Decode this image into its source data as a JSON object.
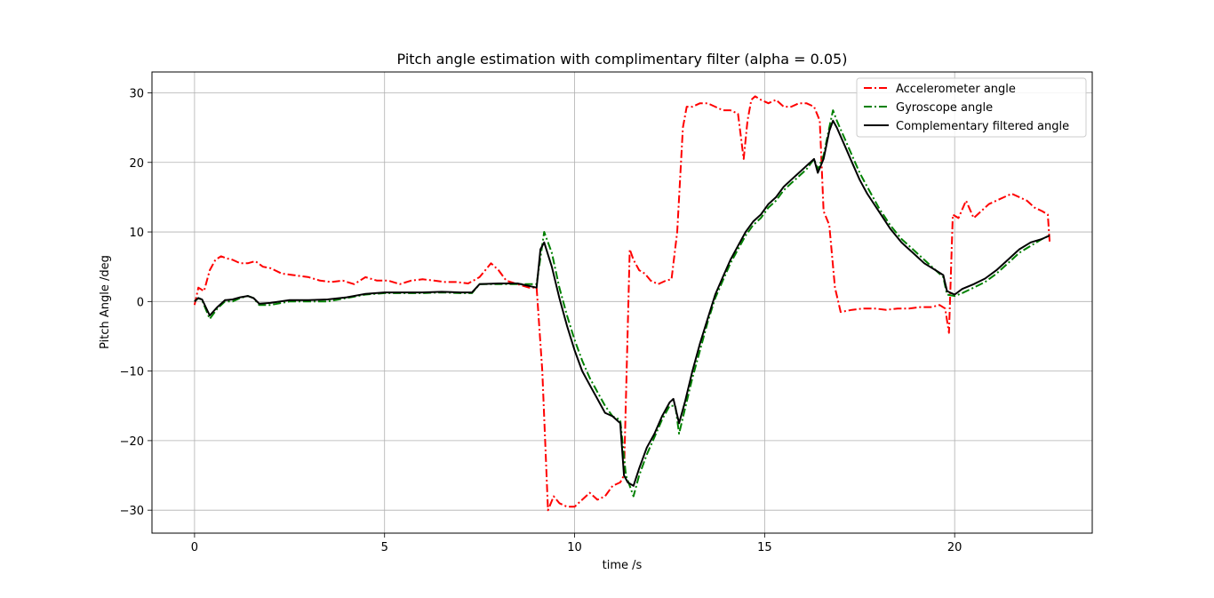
{
  "chart_data": {
    "type": "line",
    "title": "Pitch angle estimation with complimentary filter (alpha = 0.05)",
    "xlabel": "time /s",
    "ylabel": "Pitch Angle /deg",
    "xlim": [
      -1.12,
      23.62
    ],
    "ylim": [
      -33.3,
      33.0
    ],
    "xticks": [
      0,
      5,
      10,
      15,
      20
    ],
    "yticks": [
      -30,
      -20,
      -10,
      0,
      10,
      20,
      30
    ],
    "xtick_labels": [
      "0",
      "5",
      "10",
      "15",
      "20"
    ],
    "ytick_labels": [
      "−30",
      "−20",
      "−10",
      "0",
      "10",
      "20",
      "30"
    ],
    "grid": true,
    "legend_position": "top-right",
    "series": [
      {
        "name": "Accelerometer angle",
        "color": "#ff0000",
        "style": "dashdot",
        "x": [
          0.0,
          0.1,
          0.25,
          0.4,
          0.55,
          0.7,
          0.85,
          1.0,
          1.2,
          1.4,
          1.6,
          1.8,
          2.0,
          2.3,
          2.6,
          3.0,
          3.3,
          3.6,
          3.9,
          4.2,
          4.5,
          4.8,
          5.1,
          5.4,
          5.7,
          6.0,
          6.3,
          6.6,
          6.9,
          7.2,
          7.5,
          7.8,
          8.0,
          8.2,
          8.5,
          8.8,
          9.0,
          9.15,
          9.3,
          9.45,
          9.6,
          9.8,
          10.0,
          10.2,
          10.4,
          10.6,
          10.8,
          11.0,
          11.2,
          11.3,
          11.45,
          11.55,
          11.7,
          11.85,
          12.0,
          12.2,
          12.4,
          12.55,
          12.7,
          12.85,
          12.95,
          13.1,
          13.3,
          13.5,
          13.7,
          13.9,
          14.1,
          14.3,
          14.45,
          14.55,
          14.65,
          14.75,
          14.9,
          15.1,
          15.3,
          15.5,
          15.7,
          15.9,
          16.1,
          16.3,
          16.45,
          16.55,
          16.7,
          16.85,
          17.0,
          17.3,
          17.6,
          17.9,
          18.2,
          18.5,
          18.8,
          19.1,
          19.4,
          19.6,
          19.75,
          19.85,
          19.95,
          20.1,
          20.3,
          20.5,
          20.7,
          20.9,
          21.1,
          21.3,
          21.5,
          21.7,
          21.9,
          22.1,
          22.3,
          22.45,
          22.5
        ],
        "y": [
          -0.5,
          2.0,
          1.5,
          4.5,
          6.0,
          6.5,
          6.2,
          6.0,
          5.5,
          5.5,
          5.8,
          5.0,
          4.8,
          4.0,
          3.8,
          3.5,
          3.0,
          2.8,
          3.0,
          2.5,
          3.5,
          3.0,
          3.0,
          2.5,
          3.0,
          3.2,
          3.0,
          2.8,
          2.8,
          2.6,
          3.5,
          5.5,
          4.5,
          3.0,
          2.5,
          2.0,
          2.0,
          -10.0,
          -30.0,
          -28.0,
          -29.0,
          -29.5,
          -29.5,
          -28.5,
          -27.5,
          -28.5,
          -28.0,
          -26.5,
          -26.0,
          -25.0,
          7.5,
          6.0,
          4.5,
          4.0,
          3.0,
          2.5,
          3.0,
          3.2,
          10.0,
          25.0,
          28.0,
          28.0,
          28.5,
          28.5,
          28.0,
          27.5,
          27.5,
          27.0,
          20.5,
          26.0,
          29.0,
          29.5,
          29.0,
          28.5,
          29.0,
          28.0,
          28.0,
          28.5,
          28.5,
          28.0,
          26.0,
          13.0,
          11.0,
          2.0,
          -1.5,
          -1.2,
          -1.0,
          -1.0,
          -1.2,
          -1.0,
          -1.0,
          -0.8,
          -0.8,
          -0.5,
          -1.0,
          -4.5,
          12.5,
          12.0,
          14.5,
          12.0,
          13.0,
          14.0,
          14.5,
          15.0,
          15.5,
          15.0,
          14.5,
          13.5,
          13.0,
          12.5,
          8.5
        ]
      },
      {
        "name": "Gyroscope angle",
        "color": "#008000",
        "style": "dashdot",
        "x": [
          0.0,
          0.1,
          0.2,
          0.4,
          0.6,
          0.8,
          1.0,
          1.2,
          1.4,
          1.55,
          1.7,
          2.0,
          2.5,
          3.0,
          3.5,
          4.0,
          4.5,
          5.0,
          5.5,
          6.0,
          6.5,
          7.0,
          7.3,
          7.5,
          8.0,
          8.5,
          9.0,
          9.2,
          9.4,
          9.6,
          9.8,
          10.0,
          10.2,
          10.4,
          10.6,
          10.8,
          11.0,
          11.2,
          11.35,
          11.45,
          11.55,
          11.7,
          11.9,
          12.1,
          12.3,
          12.5,
          12.65,
          12.75,
          12.9,
          13.1,
          13.3,
          13.5,
          13.7,
          13.9,
          14.1,
          14.3,
          14.5,
          14.7,
          14.9,
          15.1,
          15.3,
          15.5,
          15.7,
          15.9,
          16.1,
          16.3,
          16.4,
          16.55,
          16.7,
          16.8,
          16.9,
          17.1,
          17.3,
          17.5,
          17.7,
          18.0,
          18.3,
          18.6,
          18.9,
          19.2,
          19.5,
          19.7,
          19.8,
          20.0,
          20.2,
          20.5,
          20.8,
          21.1,
          21.4,
          21.7,
          22.0,
          22.3,
          22.5
        ],
        "y": [
          0.0,
          0.5,
          0.2,
          -2.5,
          -1.0,
          0.0,
          0.0,
          0.5,
          0.8,
          0.5,
          -0.5,
          -0.5,
          0.0,
          0.0,
          0.0,
          0.5,
          1.0,
          1.2,
          1.2,
          1.2,
          1.3,
          1.2,
          1.2,
          2.5,
          2.5,
          2.5,
          2.5,
          10.0,
          7.0,
          2.0,
          -2.0,
          -5.5,
          -8.5,
          -11.0,
          -13.0,
          -15.0,
          -16.5,
          -17.0,
          -25.0,
          -26.5,
          -28.0,
          -25.0,
          -22.0,
          -19.5,
          -17.0,
          -15.0,
          -15.0,
          -19.0,
          -15.5,
          -11.0,
          -7.0,
          -3.0,
          0.5,
          3.0,
          5.5,
          7.5,
          9.5,
          11.0,
          12.0,
          13.5,
          14.5,
          16.0,
          17.0,
          18.0,
          19.0,
          20.5,
          19.0,
          21.0,
          25.0,
          27.5,
          26.0,
          23.5,
          21.0,
          18.5,
          16.5,
          13.5,
          11.0,
          9.0,
          7.5,
          6.0,
          4.5,
          3.5,
          1.0,
          0.8,
          1.2,
          2.0,
          2.8,
          4.0,
          5.5,
          7.0,
          8.0,
          9.0,
          9.5
        ]
      },
      {
        "name": "Complementary filtered angle",
        "color": "#000000",
        "style": "solid",
        "x": [
          0.0,
          0.1,
          0.2,
          0.4,
          0.6,
          0.8,
          1.0,
          1.2,
          1.4,
          1.55,
          1.7,
          2.0,
          2.5,
          3.0,
          3.5,
          4.0,
          4.5,
          5.0,
          5.5,
          6.0,
          6.5,
          7.0,
          7.3,
          7.5,
          8.0,
          8.5,
          9.0,
          9.1,
          9.2,
          9.4,
          9.6,
          9.8,
          10.0,
          10.2,
          10.4,
          10.6,
          10.8,
          11.0,
          11.2,
          11.3,
          11.4,
          11.55,
          11.7,
          11.9,
          12.1,
          12.3,
          12.5,
          12.6,
          12.75,
          12.9,
          13.1,
          13.3,
          13.5,
          13.7,
          13.9,
          14.1,
          14.3,
          14.5,
          14.7,
          14.9,
          15.1,
          15.3,
          15.5,
          15.7,
          15.9,
          16.1,
          16.3,
          16.4,
          16.55,
          16.7,
          16.8,
          16.9,
          17.1,
          17.3,
          17.5,
          17.7,
          18.0,
          18.3,
          18.6,
          18.9,
          19.2,
          19.5,
          19.7,
          19.8,
          20.0,
          20.2,
          20.5,
          20.8,
          21.1,
          21.4,
          21.7,
          22.0,
          22.3,
          22.5
        ],
        "y": [
          0.0,
          0.5,
          0.3,
          -2.0,
          -0.8,
          0.2,
          0.3,
          0.6,
          0.8,
          0.5,
          -0.3,
          -0.2,
          0.2,
          0.2,
          0.3,
          0.6,
          1.1,
          1.3,
          1.3,
          1.3,
          1.4,
          1.3,
          1.3,
          2.5,
          2.6,
          2.6,
          2.0,
          7.5,
          8.5,
          5.0,
          0.5,
          -3.5,
          -7.0,
          -10.0,
          -12.0,
          -14.0,
          -16.0,
          -16.5,
          -17.5,
          -25.0,
          -26.0,
          -26.5,
          -24.0,
          -21.0,
          -19.0,
          -16.5,
          -14.5,
          -14.0,
          -17.5,
          -14.5,
          -10.0,
          -6.0,
          -2.5,
          1.0,
          3.5,
          6.0,
          8.0,
          10.0,
          11.5,
          12.5,
          14.0,
          15.0,
          16.5,
          17.5,
          18.5,
          19.5,
          20.5,
          18.5,
          20.5,
          24.5,
          26.0,
          25.0,
          22.5,
          20.0,
          17.5,
          15.5,
          13.0,
          10.5,
          8.5,
          7.0,
          5.5,
          4.5,
          3.8,
          1.5,
          1.0,
          1.8,
          2.5,
          3.3,
          4.5,
          6.0,
          7.5,
          8.5,
          9.0,
          9.5
        ]
      }
    ]
  }
}
